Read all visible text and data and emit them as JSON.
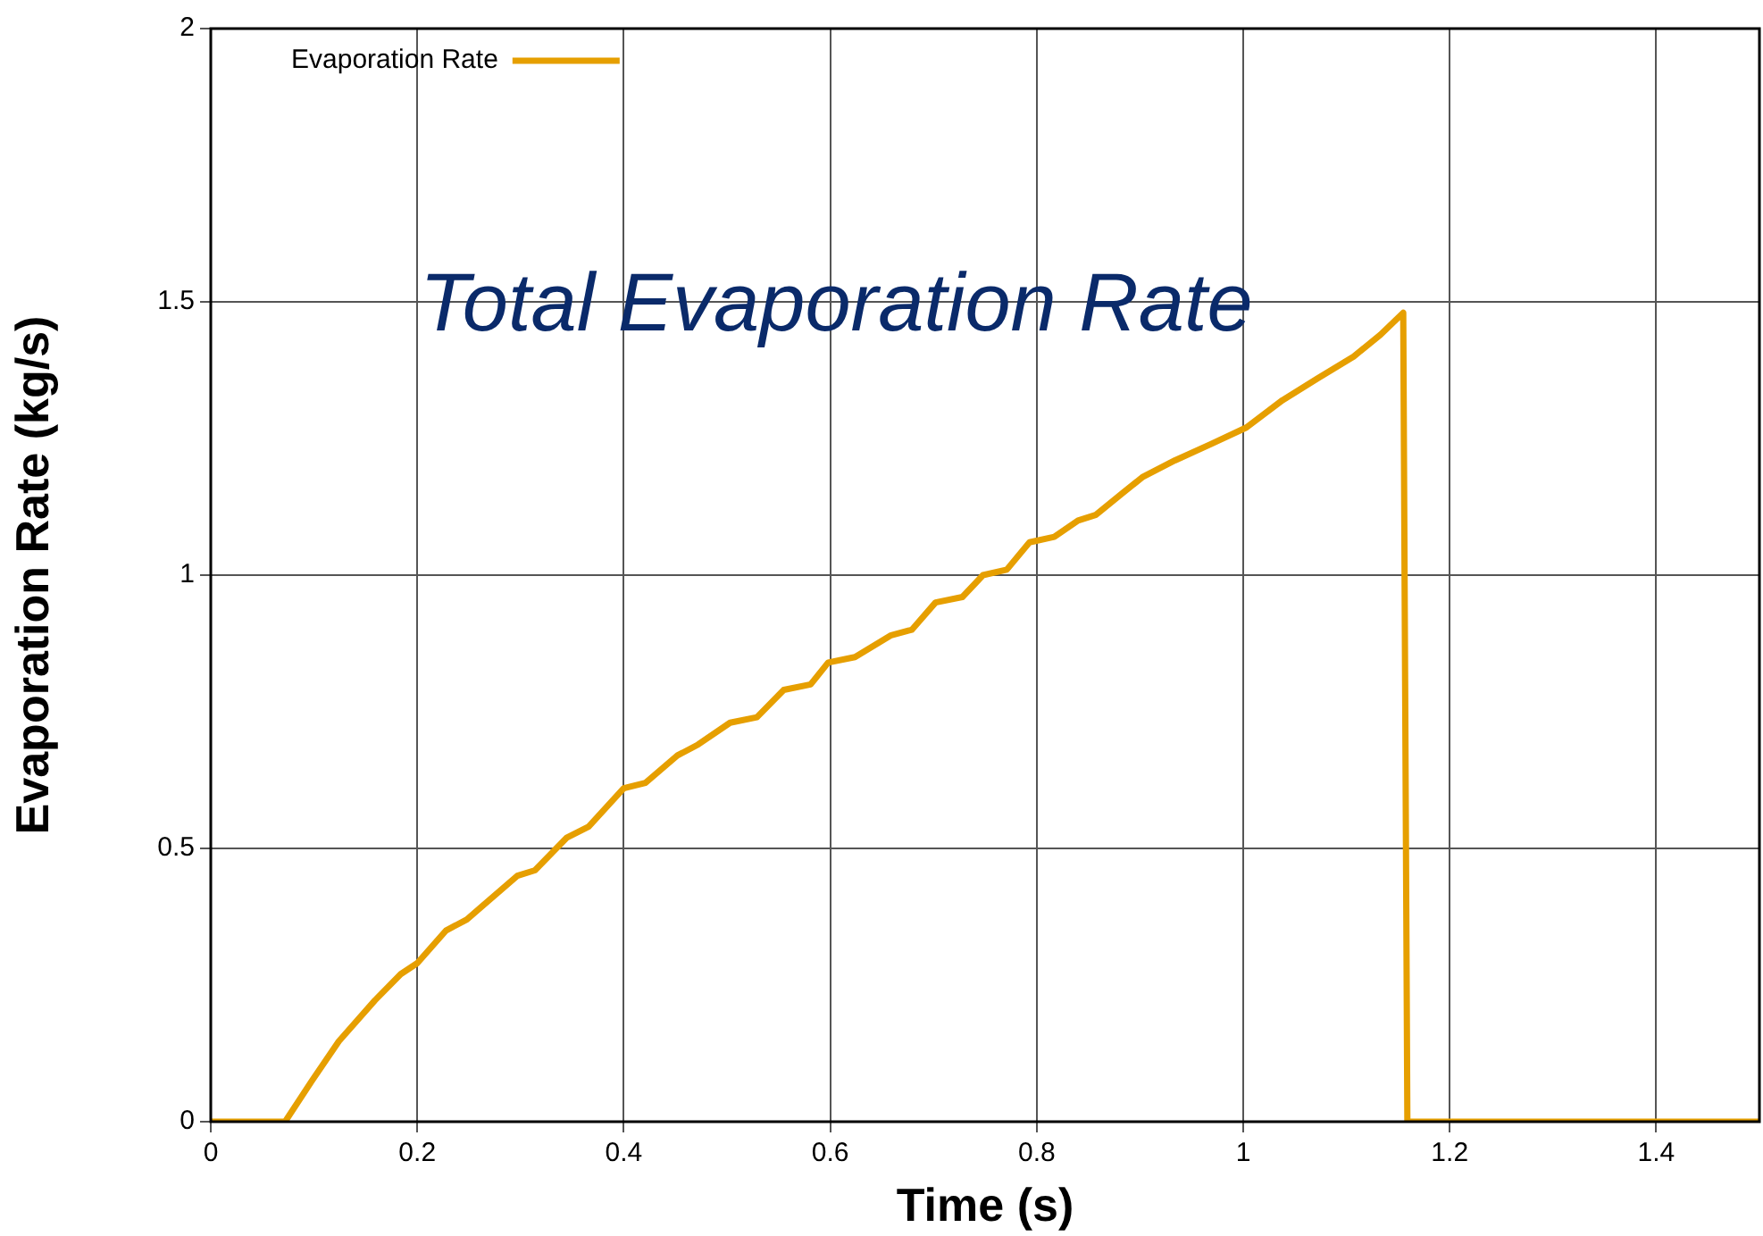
{
  "chart_data": {
    "type": "line",
    "title": "Total Evaporation Rate",
    "xlabel": "Time (s)",
    "ylabel": "Evaporation Rate (kg/s)",
    "xlim": [
      0,
      1.5
    ],
    "xticks": [
      0,
      0.2,
      0.4,
      0.6,
      0.8,
      1,
      1.2,
      1.4
    ],
    "ylim": [
      0,
      2
    ],
    "yticks": [
      0,
      0.5,
      1,
      1.5,
      2
    ],
    "grid": true,
    "legend": "top left",
    "marker": "none",
    "line_style": "solid",
    "series": [
      {
        "name": "Evaporation Rate",
        "color": "#e69f00",
        "x": [
          0,
          0.072,
          0.098,
          0.124,
          0.159,
          0.184,
          0.2,
          0.228,
          0.248,
          0.297,
          0.314,
          0.345,
          0.366,
          0.4,
          0.421,
          0.452,
          0.472,
          0.503,
          0.529,
          0.555,
          0.581,
          0.598,
          0.624,
          0.659,
          0.679,
          0.702,
          0.728,
          0.748,
          0.771,
          0.793,
          0.817,
          0.84,
          0.857,
          0.883,
          0.903,
          0.934,
          0.969,
          1.003,
          1.038,
          1.072,
          1.107,
          1.133,
          1.155,
          1.159,
          1.5
        ],
        "values": [
          0,
          0,
          0.075,
          0.147,
          0.222,
          0.27,
          0.29,
          0.35,
          0.37,
          0.45,
          0.46,
          0.52,
          0.54,
          0.61,
          0.62,
          0.67,
          0.69,
          0.73,
          0.74,
          0.79,
          0.8,
          0.84,
          0.85,
          0.89,
          0.9,
          0.95,
          0.96,
          1.0,
          1.01,
          1.06,
          1.07,
          1.1,
          1.11,
          1.15,
          1.18,
          1.21,
          1.24,
          1.27,
          1.32,
          1.36,
          1.4,
          1.44,
          1.48,
          0,
          0
        ]
      }
    ]
  }
}
